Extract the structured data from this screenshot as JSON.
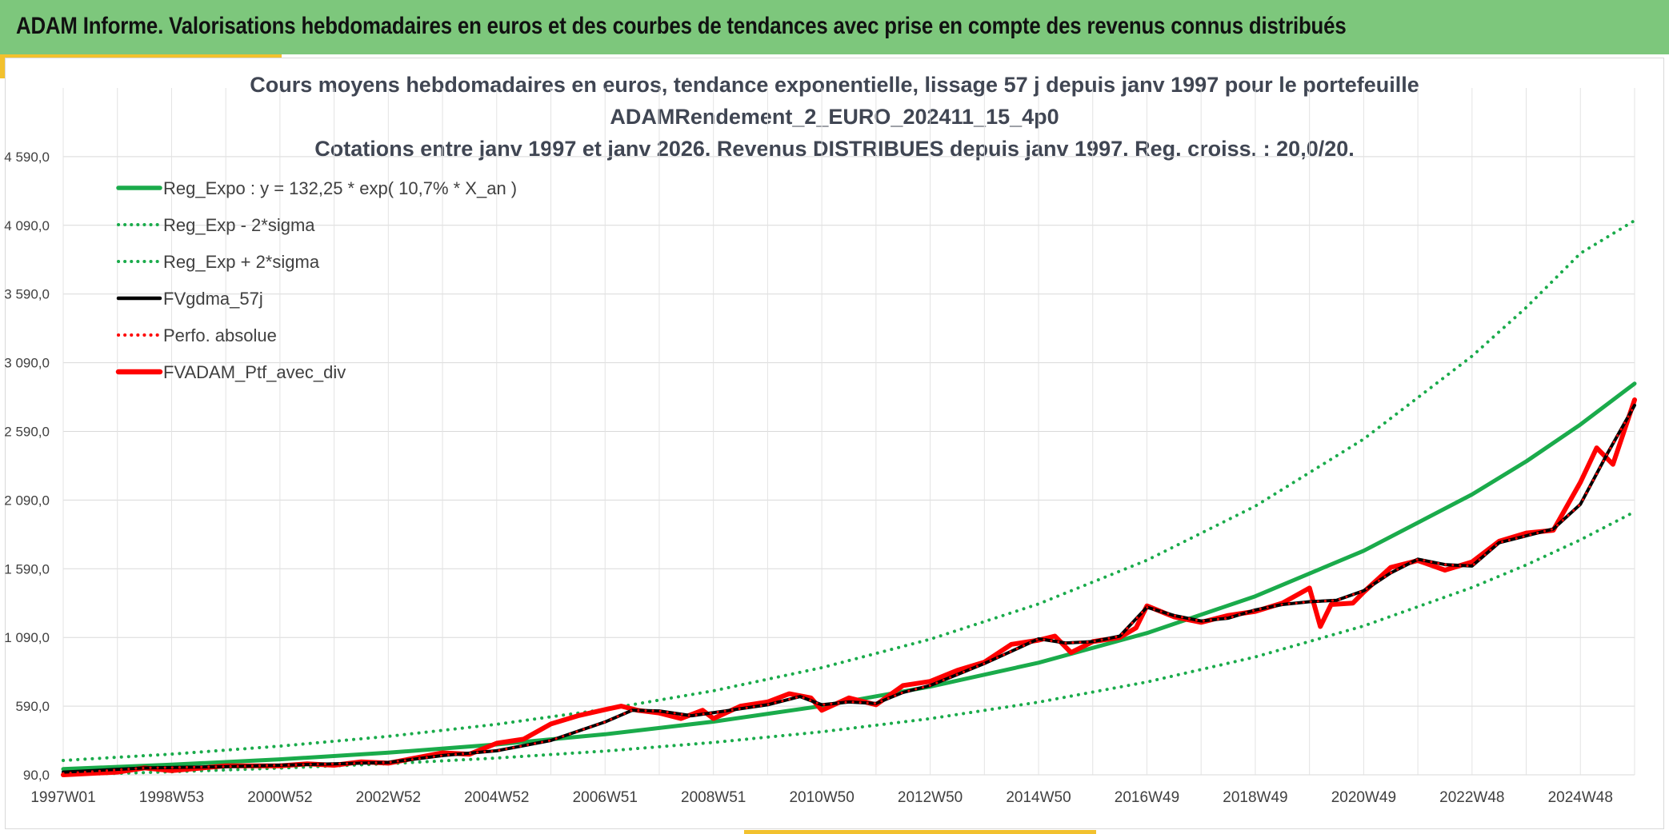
{
  "header": {
    "title": "ADAM Informe. Valorisations hebdomadaires en euros et des courbes de tendances avec prise en compte des revenus connus distribués",
    "background": "#7dc77c",
    "accent": "#f2c12e"
  },
  "chart_data": {
    "type": "line",
    "title_lines": [
      "Cours moyens hebdomadaires en euros, tendance exponentielle, lissage 57 j depuis janv 1997 pour le portefeuille",
      "ADAMRendement_2_EURO_202411_15_4p0",
      "Cotations entre janv 1997 et janv 2026. Revenus DISTRIBUES depuis janv 1997. Reg. croiss. : 20,0/20."
    ],
    "xlabel": "",
    "ylabel": "",
    "x_range": [
      1997.0,
      2026.0
    ],
    "ylim": [
      90,
      5090
    ],
    "y_ticks": [
      90,
      590,
      1090,
      1590,
      2090,
      2590,
      3090,
      3590,
      4090,
      4590
    ],
    "y_tick_labels": [
      "90,0",
      "590,0",
      "1 090,0",
      "1 590,0",
      "2 090,0",
      "2 590,0",
      "3 090,0",
      "3 590,0",
      "4 090,0",
      "4 590,0"
    ],
    "x_ticks": [
      1997.0,
      1999.0,
      2001.0,
      2003.0,
      2005.0,
      2007.0,
      2009.0,
      2011.0,
      2013.0,
      2015.0,
      2017.0,
      2019.0,
      2021.0,
      2023.0,
      2025.0
    ],
    "x_tick_labels": [
      "1997W01",
      "1998W53",
      "2000W52",
      "2002W52",
      "2004W52",
      "2006W51",
      "2008W51",
      "2010W50",
      "2012W50",
      "2014W50",
      "2016W49",
      "2018W49",
      "2020W49",
      "2022W48",
      "2024W48"
    ],
    "grid": true,
    "legend_position": "top-left",
    "series": [
      {
        "name": "Reg_Expo : y = 132,25 * exp( 10,7% *  X_an )",
        "color": "#1aab4b",
        "style": "solid",
        "x": [
          1997,
          1999,
          2001,
          2003,
          2005,
          2007,
          2009,
          2011,
          2013,
          2015,
          2017,
          2019,
          2021,
          2023,
          2024,
          2025,
          2026
        ],
        "values": [
          132,
          164,
          203,
          251,
          311,
          385,
          477,
          591,
          732,
          906,
          1122,
          1390,
          1721,
          2131,
          2372,
          2640,
          2938
        ]
      },
      {
        "name": "Reg_Exp - 2*sigma",
        "color": "#1aab4b",
        "style": "dotted",
        "x": [
          1997,
          1999,
          2001,
          2003,
          2005,
          2007,
          2009,
          2011,
          2013,
          2015,
          2017,
          2019,
          2021,
          2023,
          2024,
          2025,
          2026
        ],
        "values": [
          90,
          112,
          139,
          171,
          212,
          263,
          326,
          403,
          499,
          619,
          766,
          948,
          1174,
          1454,
          1618,
          1801,
          2005
        ]
      },
      {
        "name": "Reg_Exp + 2*sigma",
        "color": "#1aab4b",
        "style": "dotted",
        "x": [
          1997,
          1999,
          2001,
          2003,
          2005,
          2007,
          2009,
          2011,
          2013,
          2015,
          2017,
          2019,
          2021,
          2023,
          2024,
          2025,
          2026
        ],
        "values": [
          195,
          241,
          299,
          370,
          458,
          567,
          702,
          870,
          1077,
          1334,
          1652,
          2046,
          2534,
          3138,
          3492,
          3886,
          4125
        ]
      },
      {
        "name": "FVgdma_57j",
        "color": "#000000",
        "style": "solid",
        "x": [
          1997.0,
          1998.5,
          2000.0,
          2001.5,
          2003.0,
          2004.0,
          2005.0,
          2006.0,
          2007.0,
          2007.5,
          2008.0,
          2008.6,
          2009.3,
          2010.0,
          2010.6,
          2011.0,
          2011.5,
          2012.0,
          2012.5,
          2013.0,
          2013.5,
          2014.0,
          2014.5,
          2015.0,
          2015.5,
          2016.0,
          2016.5,
          2017.0,
          2017.5,
          2018.0,
          2018.5,
          2019.0,
          2019.5,
          2020.0,
          2020.5,
          2021.0,
          2021.5,
          2022.0,
          2022.5,
          2023.0,
          2023.5,
          2024.0,
          2024.5,
          2025.0,
          2025.5,
          2026.0
        ],
        "values": [
          110,
          140,
          150,
          165,
          180,
          230,
          265,
          340,
          475,
          560,
          555,
          520,
          560,
          600,
          660,
          600,
          620,
          610,
          690,
          740,
          820,
          900,
          990,
          1080,
          1050,
          1060,
          1100,
          1310,
          1250,
          1210,
          1230,
          1290,
          1330,
          1350,
          1360,
          1430,
          1560,
          1660,
          1620,
          1610,
          1780,
          1830,
          1880,
          2060,
          2430,
          2780
        ]
      },
      {
        "name": "Perfo. absolue",
        "color": "#ff0000",
        "style": "dotted",
        "x": [
          1997.0,
          1998.5,
          2000.0,
          2001.5,
          2003.0,
          2004.0,
          2005.0,
          2006.0,
          2007.0,
          2007.5,
          2008.0,
          2008.6,
          2009.3,
          2010.0,
          2010.6,
          2011.0,
          2011.5,
          2012.0,
          2012.5,
          2013.0,
          2013.5,
          2014.0,
          2014.5,
          2015.0,
          2015.5,
          2016.0,
          2016.5,
          2017.0,
          2017.5,
          2018.0,
          2018.5,
          2019.0,
          2019.5,
          2020.0,
          2020.5,
          2021.0,
          2021.5,
          2022.0,
          2022.5,
          2023.0,
          2023.5,
          2024.0,
          2024.5,
          2025.0,
          2025.5,
          2026.0
        ],
        "values": [
          100,
          140,
          150,
          165,
          180,
          230,
          265,
          340,
          475,
          560,
          555,
          520,
          560,
          600,
          660,
          600,
          620,
          610,
          690,
          740,
          820,
          900,
          990,
          1080,
          1050,
          1060,
          1100,
          1310,
          1250,
          1210,
          1230,
          1290,
          1330,
          1350,
          1360,
          1430,
          1560,
          1660,
          1620,
          1610,
          1780,
          1830,
          1880,
          2060,
          2430,
          2780
        ]
      },
      {
        "name": "FVADAM_Ptf_avec_div",
        "color": "#ff0000",
        "style": "solid",
        "x": [
          1997.0,
          1998.0,
          1998.5,
          1999.0,
          2000.0,
          2001.0,
          2001.5,
          2002.0,
          2002.5,
          2003.0,
          2004.0,
          2004.5,
          2005.0,
          2005.5,
          2006.0,
          2006.5,
          2007.0,
          2007.3,
          2007.6,
          2008.0,
          2008.4,
          2008.8,
          2009.0,
          2009.5,
          2010.0,
          2010.4,
          2010.8,
          2011.0,
          2011.5,
          2012.0,
          2012.5,
          2013.0,
          2013.5,
          2014.0,
          2014.5,
          2015.0,
          2015.3,
          2015.6,
          2016.0,
          2016.5,
          2016.8,
          2017.0,
          2017.5,
          2018.0,
          2018.5,
          2019.0,
          2019.5,
          2020.0,
          2020.2,
          2020.4,
          2020.8,
          2021.0,
          2021.5,
          2022.0,
          2022.5,
          2023.0,
          2023.5,
          2024.0,
          2024.5,
          2025.0,
          2025.3,
          2025.6,
          2026.0
        ],
        "values": [
          90,
          110,
          140,
          120,
          155,
          155,
          170,
          160,
          185,
          175,
          250,
          240,
          320,
          350,
          460,
          520,
          565,
          590,
          560,
          540,
          500,
          560,
          500,
          590,
          620,
          680,
          650,
          560,
          650,
          600,
          740,
          770,
          850,
          910,
          1040,
          1070,
          1100,
          980,
          1060,
          1090,
          1160,
          1320,
          1240,
          1200,
          1250,
          1280,
          1340,
          1450,
          1170,
          1330,
          1340,
          1420,
          1600,
          1650,
          1580,
          1640,
          1790,
          1850,
          1870,
          2220,
          2470,
          2350,
          2820
        ]
      }
    ]
  }
}
